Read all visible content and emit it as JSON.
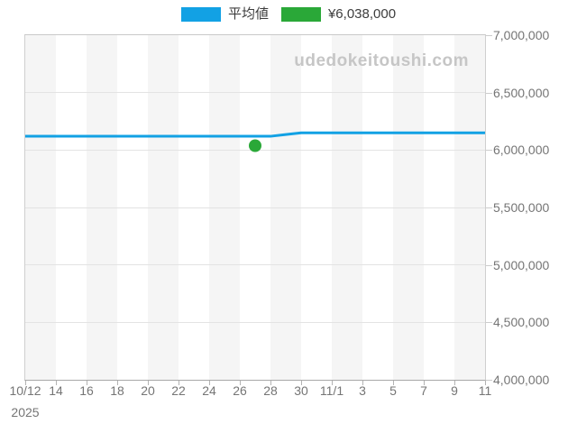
{
  "legend": [
    {
      "name": "average",
      "label": "平均値",
      "color": "#12a1e4"
    },
    {
      "name": "sale-price",
      "label": "¥6,038,000",
      "color": "#2aa838"
    }
  ],
  "watermark": "udedokeitoushi.com",
  "chart_data": {
    "type": "line",
    "title": "",
    "xlabel": "",
    "ylabel": "",
    "ylim": [
      4000000,
      7000000
    ],
    "x_days": 30,
    "x_start": "10/12",
    "x_end": "11/11",
    "year": "2025",
    "grid": "horizontal",
    "legend_position": "top-center",
    "background_stripes": {
      "color_a": "#f5f5f5",
      "color_b": "#ffffff",
      "days_per_stripe": 2
    },
    "y_ticks": [
      {
        "label": "7,000,000",
        "value": 7000000
      },
      {
        "label": "6,500,000",
        "value": 6500000
      },
      {
        "label": "6,000,000",
        "value": 6000000
      },
      {
        "label": "5,500,000",
        "value": 5500000
      },
      {
        "label": "5,000,000",
        "value": 5000000
      },
      {
        "label": "4,500,000",
        "value": 4500000
      },
      {
        "label": "4,000,000",
        "value": 4000000
      }
    ],
    "x_labels": [
      {
        "label": "10/12",
        "day": 0,
        "sub": "2025"
      },
      {
        "label": "14",
        "day": 2
      },
      {
        "label": "16",
        "day": 4
      },
      {
        "label": "18",
        "day": 6
      },
      {
        "label": "20",
        "day": 8
      },
      {
        "label": "22",
        "day": 10
      },
      {
        "label": "24",
        "day": 12
      },
      {
        "label": "26",
        "day": 14
      },
      {
        "label": "28",
        "day": 16
      },
      {
        "label": "30",
        "day": 18
      },
      {
        "label": "11/1",
        "day": 20
      },
      {
        "label": "3",
        "day": 22
      },
      {
        "label": "5",
        "day": 24
      },
      {
        "label": "7",
        "day": 26
      },
      {
        "label": "9",
        "day": 28
      },
      {
        "label": "11",
        "day": 30
      }
    ],
    "series": [
      {
        "name": "平均値",
        "type": "line",
        "color": "#12a1e4",
        "points": [
          {
            "day": 0,
            "date": "10/12",
            "value": 6120000
          },
          {
            "day": 16,
            "date": "10/28",
            "value": 6120000
          },
          {
            "day": 17,
            "date": "10/29",
            "value": 6135000
          },
          {
            "day": 18,
            "date": "10/30",
            "value": 6150000
          },
          {
            "day": 30,
            "date": "11/11",
            "value": 6150000
          }
        ]
      }
    ],
    "marker": {
      "name": "sale-point",
      "day": 15,
      "date": "10/27",
      "value": 6038000,
      "label": "¥6,038,000",
      "color": "#2aa838",
      "radius": 7
    }
  }
}
